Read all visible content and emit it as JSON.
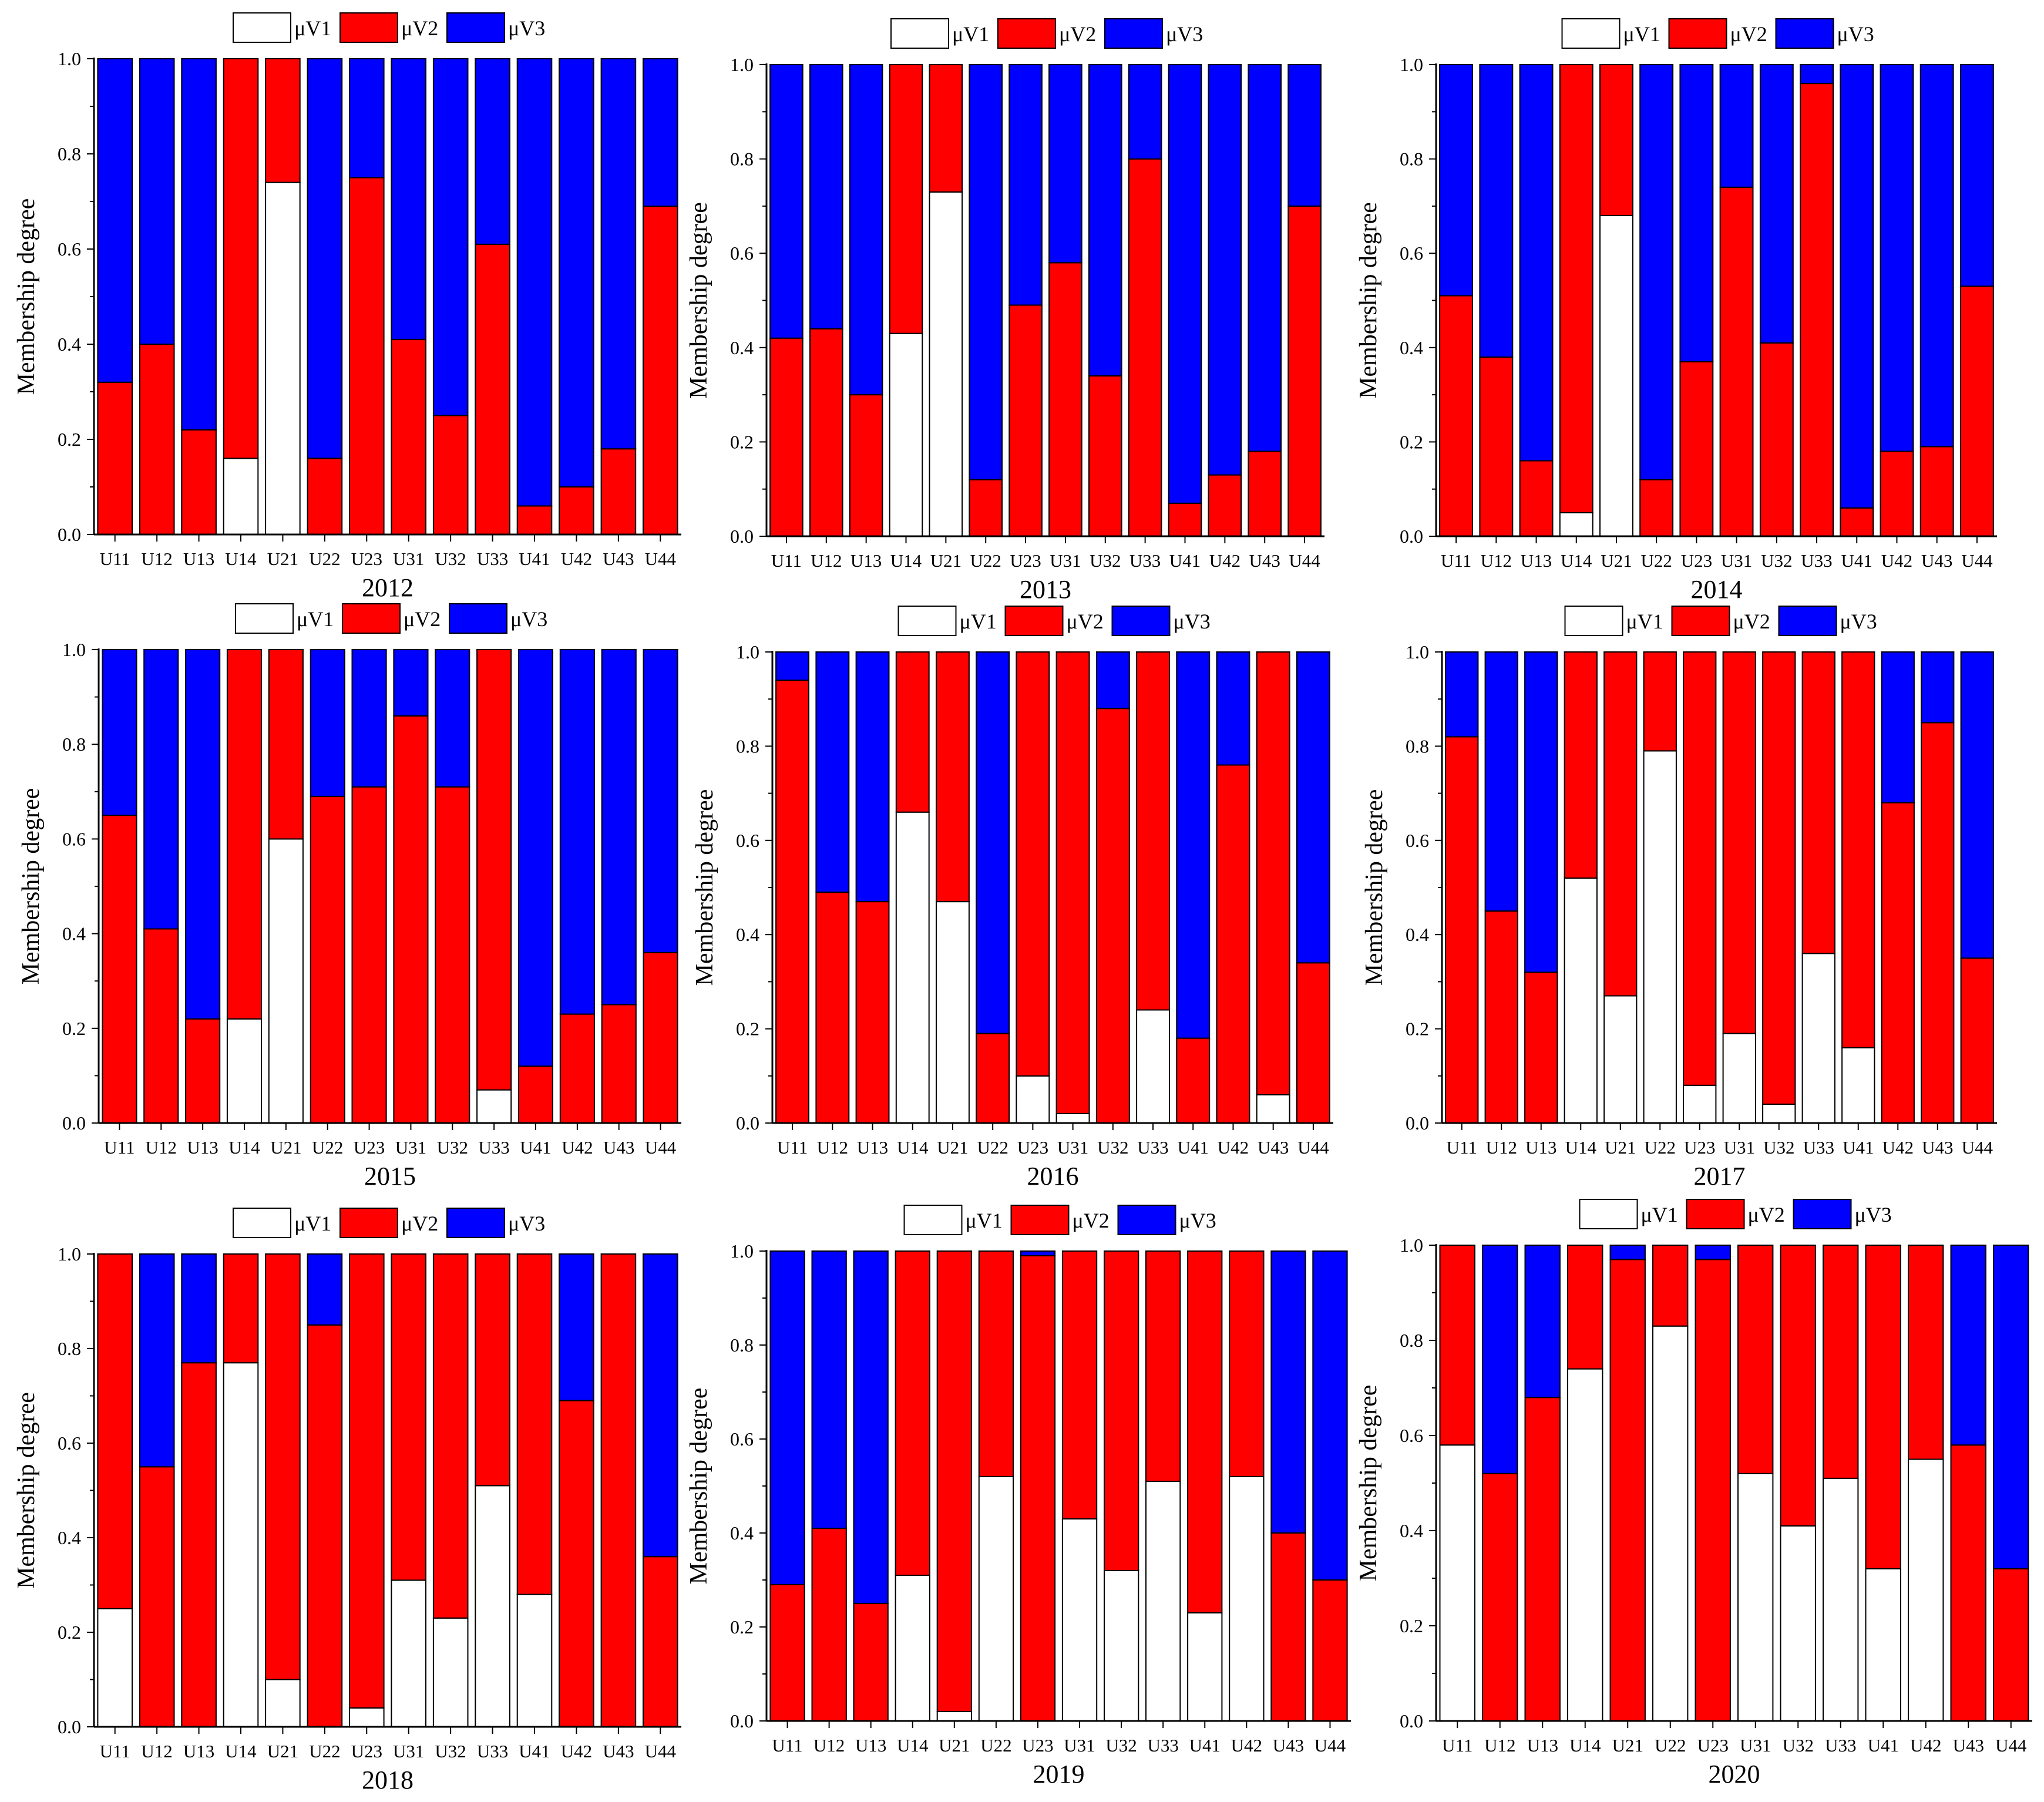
{
  "colors": {
    "v1": "#ffffff",
    "v2": "#ff0000",
    "v3": "#0000ff",
    "axis": "#000000"
  },
  "chart_data": [
    {
      "type": "bar",
      "stacked": true,
      "title": "2012",
      "ylabel": "Membership degree",
      "ylim": [
        0,
        1
      ],
      "yticks": [
        "0.0",
        "0.2",
        "0.4",
        "0.6",
        "0.8",
        "1.0"
      ],
      "legend": [
        "μV1",
        "μV2",
        "μV3"
      ],
      "categories": [
        "U11",
        "U12",
        "U13",
        "U14",
        "U21",
        "U22",
        "U23",
        "U31",
        "U32",
        "U33",
        "U41",
        "U42",
        "U43",
        "U44"
      ],
      "series": [
        {
          "name": "μV1",
          "values": [
            0,
            0,
            0,
            0.16,
            0.74,
            0,
            0,
            0,
            0,
            0,
            0,
            0,
            0,
            0
          ]
        },
        {
          "name": "μV2",
          "values": [
            0.32,
            0.4,
            0.22,
            0.84,
            0.26,
            0.16,
            0.75,
            0.41,
            0.25,
            0.61,
            0.06,
            0.1,
            0.18,
            0.69
          ]
        },
        {
          "name": "μV3",
          "values": [
            0.68,
            0.6,
            0.78,
            0,
            0,
            0.84,
            0.25,
            0.59,
            0.75,
            0.39,
            0.94,
            0.9,
            0.82,
            0.31
          ]
        }
      ]
    },
    {
      "type": "bar",
      "stacked": true,
      "title": "2013",
      "ylabel": "Membership degree",
      "ylim": [
        0,
        1
      ],
      "yticks": [
        "0.0",
        "0.2",
        "0.4",
        "0.6",
        "0.8",
        "1.0"
      ],
      "legend": [
        "μV1",
        "μV2",
        "μV3"
      ],
      "categories": [
        "U11",
        "U12",
        "U13",
        "U14",
        "U21",
        "U22",
        "U23",
        "U31",
        "U32",
        "U33",
        "U41",
        "U42",
        "U43",
        "U44"
      ],
      "series": [
        {
          "name": "μV1",
          "values": [
            0,
            0,
            0,
            0.43,
            0.73,
            0,
            0,
            0,
            0,
            0,
            0,
            0,
            0,
            0
          ]
        },
        {
          "name": "μV2",
          "values": [
            0.42,
            0.44,
            0.3,
            0.57,
            0.27,
            0.12,
            0.49,
            0.58,
            0.34,
            0.8,
            0.07,
            0.13,
            0.18,
            0.7
          ]
        },
        {
          "name": "μV3",
          "values": [
            0.58,
            0.56,
            0.7,
            0,
            0,
            0.88,
            0.51,
            0.42,
            0.66,
            0.2,
            0.93,
            0.87,
            0.82,
            0.3
          ]
        }
      ]
    },
    {
      "type": "bar",
      "stacked": true,
      "title": "2014",
      "ylabel": "Membership degree",
      "ylim": [
        0,
        1
      ],
      "yticks": [
        "0.0",
        "0.2",
        "0.4",
        "0.6",
        "0.8",
        "1.0"
      ],
      "legend": [
        "μV1",
        "μV2",
        "μV3"
      ],
      "categories": [
        "U11",
        "U12",
        "U13",
        "U14",
        "U21",
        "U22",
        "U23",
        "U31",
        "U32",
        "U33",
        "U41",
        "U42",
        "U43",
        "U44"
      ],
      "series": [
        {
          "name": "μV1",
          "values": [
            0,
            0,
            0,
            0.05,
            0.68,
            0,
            0,
            0,
            0,
            0,
            0,
            0,
            0,
            0
          ]
        },
        {
          "name": "μV2",
          "values": [
            0.51,
            0.38,
            0.16,
            0.95,
            0.32,
            0.12,
            0.37,
            0.74,
            0.41,
            0.96,
            0.06,
            0.18,
            0.19,
            0.53
          ]
        },
        {
          "name": "μV3",
          "values": [
            0.49,
            0.62,
            0.84,
            0,
            0,
            0.88,
            0.63,
            0.26,
            0.59,
            0.04,
            0.94,
            0.82,
            0.81,
            0.47
          ]
        }
      ]
    },
    {
      "type": "bar",
      "stacked": true,
      "title": "2015",
      "ylabel": "Membership degree",
      "ylim": [
        0,
        1
      ],
      "yticks": [
        "0.0",
        "0.2",
        "0.4",
        "0.6",
        "0.8",
        "1.0"
      ],
      "legend": [
        "μV1",
        "μV2",
        "μV3"
      ],
      "categories": [
        "U11",
        "U12",
        "U13",
        "U14",
        "U21",
        "U22",
        "U23",
        "U31",
        "U32",
        "U33",
        "U41",
        "U42",
        "U43",
        "U44"
      ],
      "series": [
        {
          "name": "μV1",
          "values": [
            0,
            0,
            0,
            0.22,
            0.6,
            0,
            0,
            0,
            0,
            0.07,
            0,
            0,
            0,
            0
          ]
        },
        {
          "name": "μV2",
          "values": [
            0.65,
            0.41,
            0.22,
            0.78,
            0.4,
            0.69,
            0.71,
            0.86,
            0.71,
            0.93,
            0.12,
            0.23,
            0.25,
            0.36
          ]
        },
        {
          "name": "μV3",
          "values": [
            0.35,
            0.59,
            0.78,
            0,
            0,
            0.31,
            0.29,
            0.14,
            0.29,
            0,
            0.88,
            0.77,
            0.75,
            0.64
          ]
        }
      ]
    },
    {
      "type": "bar",
      "stacked": true,
      "title": "2016",
      "ylabel": "Membership degree",
      "ylim": [
        0,
        1
      ],
      "yticks": [
        "0.0",
        "0.2",
        "0.4",
        "0.6",
        "0.8",
        "1.0"
      ],
      "legend": [
        "μV1",
        "μV2",
        "μV3"
      ],
      "categories": [
        "U11",
        "U12",
        "U13",
        "U14",
        "U21",
        "U22",
        "U23",
        "U31",
        "U32",
        "U33",
        "U41",
        "U42",
        "U43",
        "U44"
      ],
      "series": [
        {
          "name": "μV1",
          "values": [
            0,
            0,
            0,
            0.66,
            0.47,
            0,
            0.1,
            0.02,
            0,
            0.24,
            0,
            0,
            0.06,
            0
          ]
        },
        {
          "name": "μV2",
          "values": [
            0.94,
            0.49,
            0.47,
            0.34,
            0.53,
            0.19,
            0.9,
            0.98,
            0.88,
            0.76,
            0.18,
            0.76,
            0.94,
            0.34
          ]
        },
        {
          "name": "μV3",
          "values": [
            0.06,
            0.51,
            0.53,
            0,
            0,
            0.81,
            0,
            0,
            0.12,
            0,
            0.82,
            0.24,
            0,
            0.66
          ]
        }
      ]
    },
    {
      "type": "bar",
      "stacked": true,
      "title": "2017",
      "ylabel": "Membership degree",
      "ylim": [
        0,
        1
      ],
      "yticks": [
        "0.0",
        "0.2",
        "0.4",
        "0.6",
        "0.8",
        "1.0"
      ],
      "legend": [
        "μV1",
        "μV2",
        "μV3"
      ],
      "categories": [
        "U11",
        "U12",
        "U13",
        "U14",
        "U21",
        "U22",
        "U23",
        "U31",
        "U32",
        "U33",
        "U41",
        "U42",
        "U43",
        "U44"
      ],
      "series": [
        {
          "name": "μV1",
          "values": [
            0,
            0,
            0,
            0.52,
            0.27,
            0.79,
            0.08,
            0.19,
            0.04,
            0.36,
            0.16,
            0,
            0,
            0
          ]
        },
        {
          "name": "μV2",
          "values": [
            0.82,
            0.45,
            0.32,
            0.48,
            0.73,
            0.21,
            0.92,
            0.81,
            0.96,
            0.64,
            0.84,
            0.68,
            0.85,
            0.35
          ]
        },
        {
          "name": "μV3",
          "values": [
            0.18,
            0.55,
            0.68,
            0,
            0,
            0,
            0,
            0,
            0,
            0,
            0,
            0.32,
            0.15,
            0.65
          ]
        }
      ]
    },
    {
      "type": "bar",
      "stacked": true,
      "title": "2018",
      "ylabel": "Membership degree",
      "ylim": [
        0,
        1
      ],
      "yticks": [
        "0.0",
        "0.2",
        "0.4",
        "0.6",
        "0.8",
        "1.0"
      ],
      "legend": [
        "μV1",
        "μV2",
        "μV3"
      ],
      "categories": [
        "U11",
        "U12",
        "U13",
        "U14",
        "U21",
        "U22",
        "U23",
        "U31",
        "U32",
        "U33",
        "U41",
        "U42",
        "U43",
        "U44"
      ],
      "series": [
        {
          "name": "μV1",
          "values": [
            0.25,
            0,
            0,
            0.77,
            0.1,
            0,
            0.04,
            0.31,
            0.23,
            0.51,
            0.28,
            0,
            0,
            0
          ]
        },
        {
          "name": "μV2",
          "values": [
            0.75,
            0.55,
            0.77,
            0.23,
            0.9,
            0.85,
            0.96,
            0.69,
            0.77,
            0.49,
            0.72,
            0.69,
            1.0,
            0.36
          ]
        },
        {
          "name": "μV3",
          "values": [
            0,
            0.45,
            0.23,
            0,
            0,
            0.15,
            0,
            0,
            0,
            0,
            0,
            0.31,
            0,
            0.64
          ]
        }
      ]
    },
    {
      "type": "bar",
      "stacked": true,
      "title": "2019",
      "ylabel": "Membership degree",
      "ylim": [
        0,
        1
      ],
      "yticks": [
        "0.0",
        "0.2",
        "0.4",
        "0.6",
        "0.8",
        "1.0"
      ],
      "legend": [
        "μV1",
        "μV2",
        "μV3"
      ],
      "categories": [
        "U11",
        "U12",
        "U13",
        "U14",
        "U21",
        "U22",
        "U23",
        "U31",
        "U32",
        "U33",
        "U41",
        "U42",
        "U43",
        "U44"
      ],
      "series": [
        {
          "name": "μV1",
          "values": [
            0,
            0,
            0,
            0.31,
            0.02,
            0.52,
            0,
            0.43,
            0.32,
            0.51,
            0.23,
            0.52,
            0,
            0
          ]
        },
        {
          "name": "μV2",
          "values": [
            0.29,
            0.41,
            0.25,
            0.69,
            0.98,
            0.48,
            0.99,
            0.57,
            0.68,
            0.49,
            0.77,
            0.48,
            0.4,
            0.3
          ]
        },
        {
          "name": "μV3",
          "values": [
            0.71,
            0.59,
            0.75,
            0,
            0,
            0,
            0.01,
            0,
            0,
            0,
            0,
            0,
            0.6,
            0.7
          ]
        }
      ]
    },
    {
      "type": "bar",
      "stacked": true,
      "title": "2020",
      "ylabel": "Membership degree",
      "ylim": [
        0,
        1
      ],
      "yticks": [
        "0.0",
        "0.2",
        "0.4",
        "0.6",
        "0.8",
        "1.0"
      ],
      "legend": [
        "μV1",
        "μV2",
        "μV3"
      ],
      "categories": [
        "U11",
        "U12",
        "U13",
        "U14",
        "U21",
        "U22",
        "U23",
        "U31",
        "U32",
        "U33",
        "U41",
        "U42",
        "U43",
        "U44"
      ],
      "series": [
        {
          "name": "μV1",
          "values": [
            0.58,
            0,
            0,
            0.74,
            0,
            0.83,
            0,
            0.52,
            0.41,
            0.51,
            0.32,
            0.55,
            0,
            0
          ]
        },
        {
          "name": "μV2",
          "values": [
            0.42,
            0.52,
            0.68,
            0.26,
            0.97,
            0.17,
            0.97,
            0.48,
            0.59,
            0.49,
            0.68,
            0.45,
            0.58,
            0.32
          ]
        },
        {
          "name": "μV3",
          "values": [
            0,
            0.48,
            0.32,
            0,
            0.03,
            0,
            0.03,
            0,
            0,
            0,
            0,
            0,
            0.42,
            0.68
          ]
        }
      ]
    }
  ]
}
